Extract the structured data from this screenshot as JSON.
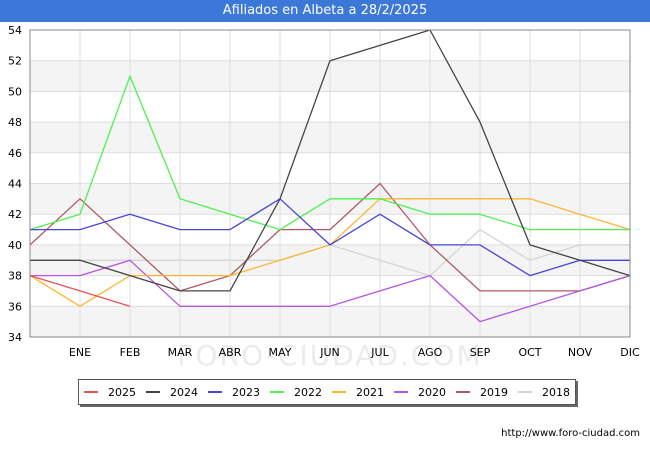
{
  "chart_data": {
    "type": "line",
    "title": "Afiliados en Albeta a 28/2/2025",
    "xlabel": "",
    "ylabel": "",
    "categories": [
      "",
      "ENE",
      "FEB",
      "MAR",
      "ABR",
      "MAY",
      "JUN",
      "JUL",
      "AGO",
      "SEP",
      "OCT",
      "NOV",
      "DIC"
    ],
    "ylim": [
      34,
      54
    ],
    "yticks": [
      34,
      36,
      38,
      40,
      42,
      44,
      46,
      48,
      50,
      52,
      54
    ],
    "grid": true,
    "legend_position": "bottom",
    "series": [
      {
        "name": "2018",
        "color": "#d4d4d4",
        "values": [
          39,
          39,
          39,
          39,
          39,
          39,
          40,
          39,
          38,
          41,
          39,
          40,
          40
        ]
      },
      {
        "name": "2019",
        "color": "#b05a64",
        "values": [
          40,
          43,
          40,
          37,
          38,
          41,
          41,
          44,
          40,
          37,
          37,
          37,
          38
        ]
      },
      {
        "name": "2020",
        "color": "#b455e6",
        "values": [
          38,
          38,
          39,
          36,
          36,
          36,
          36,
          37,
          38,
          35,
          36,
          37,
          38
        ]
      },
      {
        "name": "2021",
        "color": "#ffb432",
        "values": [
          38,
          36,
          38,
          38,
          38,
          39,
          40,
          43,
          43,
          43,
          43,
          42,
          41
        ]
      },
      {
        "name": "2022",
        "color": "#50f050",
        "values": [
          41,
          42,
          51,
          43,
          42,
          41,
          43,
          43,
          42,
          42,
          41,
          41,
          41
        ]
      },
      {
        "name": "2023",
        "color": "#4646dc",
        "values": [
          41,
          41,
          42,
          41,
          41,
          43,
          40,
          42,
          40,
          40,
          38,
          39,
          39
        ]
      },
      {
        "name": "2024",
        "color": "#444444",
        "values": [
          39,
          39,
          38,
          37,
          37,
          43,
          52,
          53,
          54,
          48,
          40,
          39,
          38
        ]
      },
      {
        "name": "2025",
        "color": "#f05050",
        "values": [
          38,
          37,
          36,
          null,
          null,
          null,
          null,
          null,
          null,
          null,
          null,
          null,
          null
        ]
      }
    ],
    "legend_order": [
      "2025",
      "2024",
      "2023",
      "2022",
      "2021",
      "2020",
      "2019",
      "2018"
    ]
  },
  "watermark": "FORO-CIUDAD.COM",
  "footer_url": "http://www.foro-ciudad.com"
}
